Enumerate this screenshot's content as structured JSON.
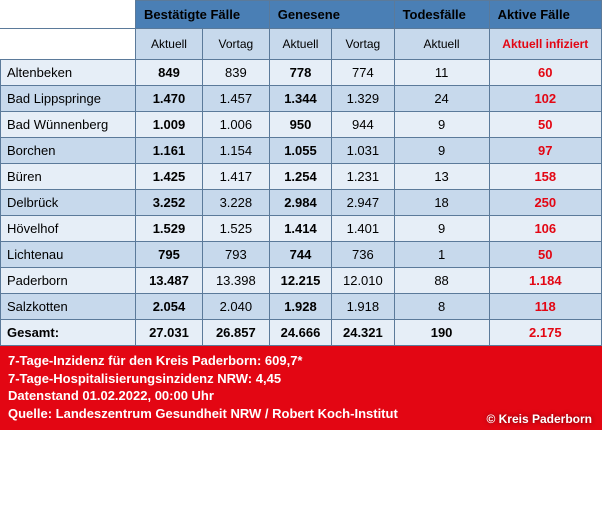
{
  "header": {
    "groups": {
      "confirmed": "Bestätigte Fälle",
      "recovered": "Genesene",
      "deaths": "Todesfälle",
      "active": "Aktive Fälle"
    },
    "sub": {
      "current": "Aktuell",
      "prev": "Vortag",
      "infected": "Aktuell infiziert"
    }
  },
  "rows": [
    {
      "name": "Altenbeken",
      "c_cur": "849",
      "c_prev": "839",
      "r_cur": "778",
      "r_prev": "774",
      "d_cur": "11",
      "active": "60"
    },
    {
      "name": "Bad Lippspringe",
      "c_cur": "1.470",
      "c_prev": "1.457",
      "r_cur": "1.344",
      "r_prev": "1.329",
      "d_cur": "24",
      "active": "102"
    },
    {
      "name": "Bad Wünnenberg",
      "c_cur": "1.009",
      "c_prev": "1.006",
      "r_cur": "950",
      "r_prev": "944",
      "d_cur": "9",
      "active": "50"
    },
    {
      "name": "Borchen",
      "c_cur": "1.161",
      "c_prev": "1.154",
      "r_cur": "1.055",
      "r_prev": "1.031",
      "d_cur": "9",
      "active": "97"
    },
    {
      "name": "Büren",
      "c_cur": "1.425",
      "c_prev": "1.417",
      "r_cur": "1.254",
      "r_prev": "1.231",
      "d_cur": "13",
      "active": "158"
    },
    {
      "name": "Delbrück",
      "c_cur": "3.252",
      "c_prev": "3.228",
      "r_cur": "2.984",
      "r_prev": "2.947",
      "d_cur": "18",
      "active": "250"
    },
    {
      "name": "Hövelhof",
      "c_cur": "1.529",
      "c_prev": "1.525",
      "r_cur": "1.414",
      "r_prev": "1.401",
      "d_cur": "9",
      "active": "106"
    },
    {
      "name": "Lichtenau",
      "c_cur": "795",
      "c_prev": "793",
      "r_cur": "744",
      "r_prev": "736",
      "d_cur": "1",
      "active": "50"
    },
    {
      "name": "Paderborn",
      "c_cur": "13.487",
      "c_prev": "13.398",
      "r_cur": "12.215",
      "r_prev": "12.010",
      "d_cur": "88",
      "active": "1.184"
    },
    {
      "name": "Salzkotten",
      "c_cur": "2.054",
      "c_prev": "2.040",
      "r_cur": "1.928",
      "r_prev": "1.918",
      "d_cur": "8",
      "active": "118"
    }
  ],
  "total": {
    "name": "Gesamt:",
    "c_cur": "27.031",
    "c_prev": "26.857",
    "r_cur": "24.666",
    "r_prev": "24.321",
    "d_cur": "190",
    "active": "2.175"
  },
  "footer": {
    "line1": "7-Tage-Inzidenz für den Kreis Paderborn: 609,7*",
    "line2": "7-Tage-Hospitalisierungsinzidenz NRW: 4,45",
    "line3": "Datenstand 01.02.2022, 00:00 Uhr",
    "line4": "Quelle: Landeszentrum Gesundheit NRW / Robert Koch-Institut"
  },
  "credit": "© Kreis Paderborn"
}
